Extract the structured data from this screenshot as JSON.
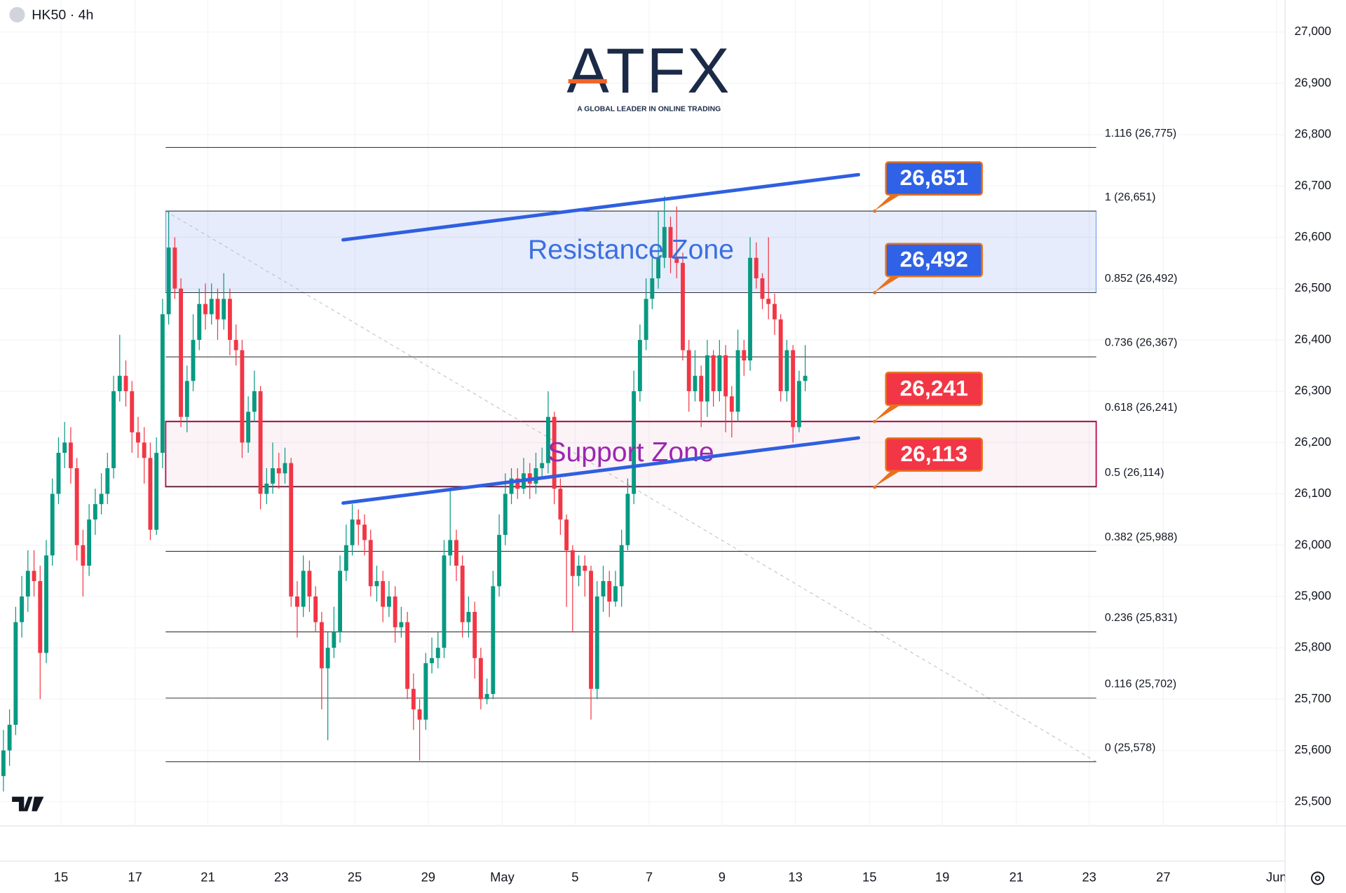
{
  "chart_data": {
    "type": "candlestick",
    "title": "HK50 · 4h",
    "logo": {
      "brand": "ATFX",
      "tagline": "A GLOBAL LEADER IN ONLINE TRADING"
    },
    "open": [
      25550,
      25600,
      25650,
      25850,
      25900,
      25950,
      25930,
      25790,
      25980,
      26100,
      26180,
      26200,
      26150,
      26000,
      25960,
      26050,
      26080,
      26100,
      26150,
      26300,
      26330,
      26300,
      26220,
      26200,
      26170,
      26030,
      26180,
      26450,
      26580,
      26500,
      26250,
      26320,
      26400,
      26470,
      26450,
      26480,
      26440,
      26480,
      26400,
      26380,
      26200,
      26260,
      26300,
      26100,
      26120,
      26150,
      26140,
      26160,
      25900,
      25880,
      25950,
      25900,
      25850,
      25760,
      25800,
      25830,
      25950,
      26000,
      26050,
      26040,
      26010,
      25920,
      25930,
      25880,
      25900,
      25840,
      25850,
      25720,
      25680,
      25660,
      25770,
      25780,
      25800,
      25980,
      26010,
      25960,
      25850,
      25870,
      25780,
      25700,
      25710,
      25920,
      26020,
      26100,
      26130,
      26110,
      26140,
      26120,
      26150,
      26160,
      26250,
      26110,
      26050,
      25990,
      25940,
      25960,
      25950,
      25720,
      25900,
      25930,
      25890,
      25920,
      26000,
      26100,
      26300,
      26400,
      26480,
      26520,
      26560,
      26620,
      26560,
      26550,
      26380,
      26300,
      26330,
      26280,
      26370,
      26300,
      26370,
      26290,
      26260,
      26380,
      26360,
      26560,
      26520,
      26480,
      26470,
      26440,
      26300,
      26380,
      26230,
      26320
    ],
    "high": [
      25640,
      25680,
      25880,
      25940,
      25990,
      25990,
      25960,
      26010,
      26130,
      26210,
      26240,
      26230,
      26170,
      26030,
      26080,
      26110,
      26140,
      26180,
      26330,
      26410,
      26360,
      26320,
      26250,
      26230,
      26200,
      26210,
      26480,
      26650,
      26600,
      26520,
      26350,
      26450,
      26500,
      26510,
      26510,
      26500,
      26530,
      26500,
      26430,
      26400,
      26290,
      26340,
      26310,
      26150,
      26200,
      26180,
      26190,
      26170,
      25930,
      25980,
      25970,
      25920,
      25870,
      25830,
      25880,
      25980,
      26040,
      26080,
      26070,
      26060,
      26030,
      25960,
      25950,
      25930,
      25920,
      25880,
      25870,
      25750,
      25700,
      25790,
      25820,
      25830,
      26010,
      26110,
      26030,
      25980,
      25900,
      25890,
      25800,
      25740,
      25950,
      26060,
      26140,
      26150,
      26150,
      26170,
      26160,
      26180,
      26190,
      26300,
      26260,
      26130,
      26060,
      26000,
      25980,
      25980,
      25960,
      25930,
      25960,
      25950,
      25950,
      26030,
      26130,
      26340,
      26430,
      26520,
      26560,
      26650,
      26680,
      26640,
      26660,
      26570,
      26400,
      26380,
      26350,
      26400,
      26380,
      26400,
      26390,
      26310,
      26420,
      26400,
      26600,
      26590,
      26530,
      26600,
      26490,
      26450,
      26400,
      26390,
      26340,
      26390
    ],
    "low": [
      25520,
      25570,
      25630,
      25820,
      25870,
      25900,
      25700,
      25770,
      25960,
      26080,
      26150,
      26120,
      25970,
      25900,
      25940,
      26020,
      26060,
      26080,
      26130,
      26280,
      26270,
      26180,
      26170,
      26120,
      26010,
      26020,
      26150,
      26430,
      26480,
      26230,
      26220,
      26300,
      26380,
      26420,
      26430,
      26400,
      26420,
      26370,
      26350,
      26170,
      26180,
      26240,
      26070,
      26080,
      26100,
      26110,
      26120,
      25880,
      25820,
      25860,
      25870,
      25830,
      25680,
      25620,
      25780,
      25810,
      25930,
      25980,
      26000,
      25980,
      25900,
      25890,
      25850,
      25860,
      25810,
      25820,
      25700,
      25640,
      25580,
      25640,
      25750,
      25760,
      25780,
      25960,
      25930,
      25820,
      25820,
      25740,
      25680,
      25690,
      25700,
      25900,
      26000,
      26080,
      26090,
      26100,
      26090,
      26100,
      26130,
      26140,
      26080,
      26020,
      25880,
      25830,
      25920,
      25900,
      25660,
      25700,
      25870,
      25860,
      25880,
      25880,
      25990,
      26080,
      26280,
      26380,
      26460,
      26500,
      26540,
      26530,
      26520,
      26360,
      26260,
      26280,
      26230,
      26250,
      26270,
      26280,
      26220,
      26210,
      26240,
      26330,
      26340,
      26500,
      26460,
      26440,
      26410,
      26280,
      26280,
      26200,
      26220,
      26300
    ],
    "close": [
      25600,
      25650,
      25850,
      25900,
      25950,
      25930,
      25790,
      25980,
      26100,
      26180,
      26200,
      26150,
      26000,
      25960,
      26050,
      26080,
      26100,
      26150,
      26300,
      26330,
      26300,
      26220,
      26200,
      26170,
      26030,
      26180,
      26450,
      26580,
      26500,
      26250,
      26320,
      26400,
      26470,
      26450,
      26480,
      26440,
      26480,
      26400,
      26380,
      26200,
      26260,
      26300,
      26100,
      26120,
      26150,
      26140,
      26160,
      25900,
      25880,
      25950,
      25900,
      25850,
      25760,
      25800,
      25830,
      25950,
      26000,
      26050,
      26040,
      26010,
      25920,
      25930,
      25880,
      25900,
      25840,
      25850,
      25720,
      25680,
      25660,
      25770,
      25780,
      25800,
      25980,
      26010,
      25960,
      25850,
      25870,
      25780,
      25700,
      25710,
      25920,
      26020,
      26100,
      26130,
      26110,
      26140,
      26120,
      26150,
      26160,
      26250,
      26110,
      26050,
      25990,
      25940,
      25960,
      25950,
      25720,
      25900,
      25930,
      25890,
      25920,
      26000,
      26100,
      26300,
      26400,
      26480,
      26520,
      26560,
      26620,
      26560,
      26550,
      26380,
      26300,
      26330,
      26280,
      26370,
      26300,
      26370,
      26290,
      26260,
      26380,
      26360,
      26560,
      26520,
      26480,
      26470,
      26440,
      26300,
      26380,
      26230,
      26320,
      26330
    ],
    "up_color": "#089981",
    "down_color": "#f23645",
    "xlim": [
      -0.56,
      209.4
    ],
    "xticks": [
      {
        "value": 9.4,
        "label": "15"
      },
      {
        "value": 21.5,
        "label": "17"
      },
      {
        "value": 33.4,
        "label": "21"
      },
      {
        "value": 45.4,
        "label": "23"
      },
      {
        "value": 57.4,
        "label": "25"
      },
      {
        "value": 69.4,
        "label": "29"
      },
      {
        "value": 81.5,
        "label": "May"
      },
      {
        "value": 93.4,
        "label": "5"
      },
      {
        "value": 105.5,
        "label": "7"
      },
      {
        "value": 117.4,
        "label": "9"
      },
      {
        "value": 129.4,
        "label": "13"
      },
      {
        "value": 141.5,
        "label": "15"
      },
      {
        "value": 153.4,
        "label": "19"
      },
      {
        "value": 165.5,
        "label": "21"
      },
      {
        "value": 177.4,
        "label": "23"
      },
      {
        "value": 189.5,
        "label": "27"
      },
      {
        "value": 208,
        "label": "Jun"
      }
    ],
    "ylim": [
      25453,
      27062
    ],
    "yticks": [
      {
        "value": 25500,
        "label": "25,500"
      },
      {
        "value": 25600,
        "label": "25,600"
      },
      {
        "value": 25700,
        "label": "25,700"
      },
      {
        "value": 25800,
        "label": "25,800"
      },
      {
        "value": 25900,
        "label": "25,900"
      },
      {
        "value": 26000,
        "label": "26,000"
      },
      {
        "value": 26100,
        "label": "26,100"
      },
      {
        "value": 26200,
        "label": "26,200"
      },
      {
        "value": 26300,
        "label": "26,300"
      },
      {
        "value": 26400,
        "label": "26,400"
      },
      {
        "value": 26500,
        "label": "26,500"
      },
      {
        "value": 26600,
        "label": "26,600"
      },
      {
        "value": 26700,
        "label": "26,700"
      },
      {
        "value": 26800,
        "label": "26,800"
      },
      {
        "value": 26900,
        "label": "26,900"
      },
      {
        "value": 27000,
        "label": "27,000"
      }
    ],
    "grid": true,
    "fib_levels": [
      {
        "value": 26775,
        "label": "1.116 (26,775)"
      },
      {
        "value": 26651,
        "label": "1 (26,651)"
      },
      {
        "value": 26492,
        "label": "0.852 (26,492)"
      },
      {
        "value": 26367,
        "label": "0.736 (26,367)"
      },
      {
        "value": 26241,
        "label": "0.618 (26,241)"
      },
      {
        "value": 26114,
        "label": "0.5 (26,114)"
      },
      {
        "value": 25988,
        "label": "0.382 (25,988)"
      },
      {
        "value": 25831,
        "label": "0.236 (25,831)"
      },
      {
        "value": 25702,
        "label": "0.116 (25,702)"
      },
      {
        "value": 25578,
        "label": "0 (25,578)"
      }
    ],
    "zones": [
      {
        "label": "Resistance Zone",
        "low": 26492,
        "high": 26651,
        "color": "#3b6fe0"
      },
      {
        "label": "Support Zone",
        "low": 26114,
        "high": 26241,
        "color": "#c2185b"
      }
    ],
    "trendlines": [
      {
        "x": [
          55.5,
          139.7
        ],
        "y": [
          26595,
          26722
        ],
        "color": "#2f5fe0"
      },
      {
        "x": [
          55.5,
          139.7
        ],
        "y": [
          26082,
          26209
        ],
        "color": "#2f5fe0"
      }
    ],
    "price_labels": [
      {
        "value": 26651,
        "label": "26,651",
        "color": "#2f62e6"
      },
      {
        "value": 26492,
        "label": "26,492",
        "color": "#2f62e6"
      },
      {
        "value": 26241,
        "label": "26,241",
        "color": "#f23645"
      },
      {
        "value": 26113,
        "label": "26,113",
        "color": "#f23645"
      }
    ]
  }
}
